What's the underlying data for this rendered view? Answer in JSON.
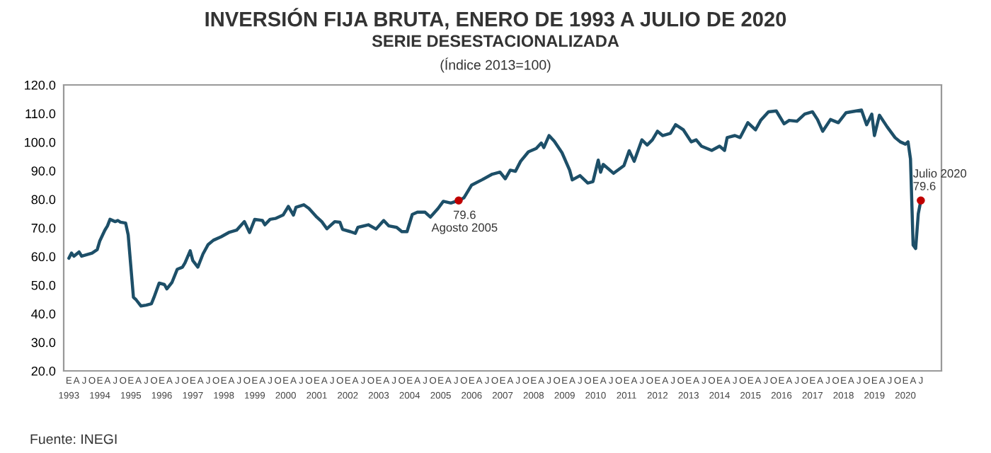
{
  "chart_data": {
    "type": "line",
    "title": "INVERSIÓN FIJA BRUTA, ENERO DE 1993 A JULIO DE 2020",
    "subtitle": "SERIE DESESTACIONALIZADA",
    "annotations": [
      "(Índice 2013=100)",
      "Fuente: INEGI",
      {
        "text": "79.6\nAgosto 2005",
        "x": "2005-08",
        "y": 79.6
      },
      {
        "text": "Julio 2020\n79.6",
        "x": "2020-07",
        "y": 79.6
      }
    ],
    "series": [
      {
        "color": "#1d4f68",
        "x": [
          "1993-01",
          "1993-02",
          "1993-03",
          "1993-05",
          "1993-06",
          "1993-10",
          "1993-12",
          "1994-01",
          "1994-03",
          "1994-04",
          "1994-05",
          "1994-07",
          "1994-08",
          "1994-09",
          "1994-11",
          "1994-12",
          "1995-02",
          "1995-03",
          "1995-05",
          "1995-07",
          "1995-09",
          "1995-10",
          "1995-12",
          "1996-02",
          "1996-03",
          "1996-05",
          "1996-07",
          "1996-09",
          "1996-10",
          "1996-12",
          "1997-01",
          "1997-03",
          "1997-05",
          "1997-07",
          "1997-09",
          "1997-12",
          "1998-03",
          "1998-06",
          "1998-09",
          "1998-11",
          "1999-01",
          "1999-04",
          "1999-05",
          "1999-07",
          "1999-09",
          "1999-12",
          "2000-02",
          "2000-04",
          "2000-05",
          "2000-08",
          "2000-10",
          "2001-01",
          "2001-03",
          "2001-05",
          "2001-08",
          "2001-10",
          "2001-11",
          "2002-02",
          "2002-04",
          "2002-05",
          "2002-09",
          "2002-12",
          "2003-03",
          "2003-05",
          "2003-08",
          "2003-10",
          "2003-12",
          "2004-02",
          "2004-04",
          "2004-07",
          "2004-09",
          "2004-12",
          "2005-02",
          "2005-05",
          "2005-08",
          "2005-10",
          "2006-01",
          "2006-05",
          "2006-09",
          "2006-12",
          "2007-02",
          "2007-04",
          "2007-06",
          "2007-08",
          "2007-11",
          "2008-02",
          "2008-04",
          "2008-05",
          "2008-07",
          "2008-09",
          "2008-12",
          "2009-03",
          "2009-04",
          "2009-07",
          "2009-10",
          "2009-12",
          "2010-02",
          "2010-03",
          "2010-04",
          "2010-08",
          "2010-12",
          "2011-02",
          "2011-04",
          "2011-07",
          "2011-09",
          "2011-11",
          "2012-01",
          "2012-03",
          "2012-06",
          "2012-08",
          "2012-11",
          "2013-02",
          "2013-04",
          "2013-06",
          "2013-10",
          "2014-01",
          "2014-03",
          "2014-04",
          "2014-07",
          "2014-09",
          "2014-12",
          "2015-03",
          "2015-05",
          "2015-08",
          "2015-11",
          "2016-02",
          "2016-04",
          "2016-07",
          "2016-10",
          "2017-01",
          "2017-03",
          "2017-05",
          "2017-08",
          "2017-11",
          "2018-02",
          "2018-04",
          "2018-08",
          "2018-10",
          "2018-12",
          "2019-01",
          "2019-03",
          "2019-06",
          "2019-09",
          "2019-11",
          "2020-01",
          "2020-02",
          "2020-03",
          "2020-04",
          "2020-05",
          "2020-06",
          "2020-07"
        ],
        "values": [
          59.4,
          61.2,
          60.1,
          61.6,
          60.1,
          61.2,
          62.4,
          65.5,
          69.2,
          70.7,
          73.0,
          72.2,
          72.6,
          72.0,
          71.7,
          67.6,
          45.7,
          45.0,
          42.7,
          43.0,
          43.5,
          45.7,
          50.7,
          50.2,
          48.7,
          51.0,
          55.5,
          56.3,
          57.8,
          62.0,
          58.6,
          56.3,
          60.9,
          64.2,
          65.7,
          66.9,
          68.4,
          69.2,
          72.2,
          68.4,
          73.0,
          72.6,
          71.1,
          73.0,
          73.3,
          74.5,
          77.5,
          74.5,
          77.2,
          78.1,
          76.8,
          73.8,
          72.2,
          69.7,
          72.2,
          72.0,
          69.5,
          68.7,
          68.1,
          70.2,
          71.1,
          69.6,
          72.6,
          70.7,
          70.2,
          68.7,
          68.7,
          74.7,
          75.5,
          75.5,
          73.8,
          76.8,
          79.3,
          78.7,
          79.6,
          80.5,
          85.0,
          86.8,
          88.8,
          89.5,
          87.2,
          90.2,
          89.8,
          93.3,
          96.6,
          97.8,
          99.7,
          98.1,
          102.3,
          100.3,
          96.3,
          90.2,
          86.8,
          88.3,
          85.7,
          86.2,
          93.7,
          89.5,
          92.2,
          89.1,
          91.8,
          97.0,
          93.3,
          100.8,
          99.0,
          100.8,
          103.8,
          102.3,
          103.1,
          106.1,
          104.3,
          100.1,
          100.8,
          98.6,
          97.1,
          98.6,
          97.1,
          101.6,
          102.3,
          101.6,
          106.8,
          104.3,
          107.6,
          110.6,
          110.9,
          106.4,
          107.6,
          107.3,
          109.8,
          110.6,
          107.9,
          103.8,
          107.9,
          106.8,
          110.3,
          110.6,
          111.2,
          106.1,
          109.8,
          102.3,
          109.4,
          105.3,
          101.6,
          100.1,
          99.3,
          100.1,
          94.1,
          64.0,
          62.8,
          75.0,
          79.6
        ]
      },
      {
        "type": "scatter",
        "color": "#c00000",
        "x": [
          "2005-08",
          "2020-07"
        ],
        "values": [
          79.6,
          79.6
        ]
      }
    ],
    "xlim": [
      "1992-11",
      "2021-03"
    ],
    "ylim": [
      20,
      120
    ],
    "yticks": [
      {
        "value": 20,
        "label": "20.0"
      },
      {
        "value": 30,
        "label": "30.0"
      },
      {
        "value": 40,
        "label": "40.0"
      },
      {
        "value": 50,
        "label": "50.0"
      },
      {
        "value": 60,
        "label": "60.0"
      },
      {
        "value": 70,
        "label": "70.0"
      },
      {
        "value": 80,
        "label": "80.0"
      },
      {
        "value": 90,
        "label": "90.0"
      },
      {
        "value": 100,
        "label": "100.0"
      },
      {
        "value": 110,
        "label": "110.0"
      },
      {
        "value": 120,
        "label": "120.0"
      }
    ],
    "xticks": [
      {
        "value": "1993-01",
        "label": "E\n1993"
      },
      {
        "value": "1993-04",
        "label": "A"
      },
      {
        "value": "1993-07",
        "label": "J"
      },
      {
        "value": "1993-10",
        "label": "O"
      },
      {
        "value": "1994-01",
        "label": "E\n1994"
      },
      {
        "value": "1994-04",
        "label": "A"
      },
      {
        "value": "1994-07",
        "label": "J"
      },
      {
        "value": "1994-10",
        "label": "O"
      },
      {
        "value": "1995-01",
        "label": "E\n1995"
      },
      {
        "value": "1995-04",
        "label": "A"
      },
      {
        "value": "1995-07",
        "label": "J"
      },
      {
        "value": "1995-10",
        "label": "O"
      },
      {
        "value": "1996-01",
        "label": "E\n1996"
      },
      {
        "value": "1996-04",
        "label": "A"
      },
      {
        "value": "1996-07",
        "label": "J"
      },
      {
        "value": "1996-10",
        "label": "O"
      },
      {
        "value": "1997-01",
        "label": "E\n1997"
      },
      {
        "value": "1997-04",
        "label": "A"
      },
      {
        "value": "1997-07",
        "label": "J"
      },
      {
        "value": "1997-10",
        "label": "O"
      },
      {
        "value": "1998-01",
        "label": "E\n1998"
      },
      {
        "value": "1998-04",
        "label": "A"
      },
      {
        "value": "1998-07",
        "label": "J"
      },
      {
        "value": "1998-10",
        "label": "O"
      },
      {
        "value": "1999-01",
        "label": "E\n1999"
      },
      {
        "value": "1999-04",
        "label": "A"
      },
      {
        "value": "1999-07",
        "label": "J"
      },
      {
        "value": "1999-10",
        "label": "O"
      },
      {
        "value": "2000-01",
        "label": "E\n2000"
      },
      {
        "value": "2000-04",
        "label": "A"
      },
      {
        "value": "2000-07",
        "label": "J"
      },
      {
        "value": "2000-10",
        "label": "O"
      },
      {
        "value": "2001-01",
        "label": "E\n2001"
      },
      {
        "value": "2001-04",
        "label": "A"
      },
      {
        "value": "2001-07",
        "label": "J"
      },
      {
        "value": "2001-10",
        "label": "O"
      },
      {
        "value": "2002-01",
        "label": "E\n2002"
      },
      {
        "value": "2002-04",
        "label": "A"
      },
      {
        "value": "2002-07",
        "label": "J"
      },
      {
        "value": "2002-10",
        "label": "O"
      },
      {
        "value": "2003-01",
        "label": "E\n2003"
      },
      {
        "value": "2003-04",
        "label": "A"
      },
      {
        "value": "2003-07",
        "label": "J"
      },
      {
        "value": "2003-10",
        "label": "O"
      },
      {
        "value": "2004-01",
        "label": "E\n2004"
      },
      {
        "value": "2004-04",
        "label": "A"
      },
      {
        "value": "2004-07",
        "label": "J"
      },
      {
        "value": "2004-10",
        "label": "O"
      },
      {
        "value": "2005-01",
        "label": "E\n2005"
      },
      {
        "value": "2005-04",
        "label": "A"
      },
      {
        "value": "2005-07",
        "label": "J"
      },
      {
        "value": "2005-10",
        "label": "O"
      },
      {
        "value": "2006-01",
        "label": "E\n2006"
      },
      {
        "value": "2006-04",
        "label": "A"
      },
      {
        "value": "2006-07",
        "label": "J"
      },
      {
        "value": "2006-10",
        "label": "O"
      },
      {
        "value": "2007-01",
        "label": "E\n2007"
      },
      {
        "value": "2007-04",
        "label": "A"
      },
      {
        "value": "2007-07",
        "label": "J"
      },
      {
        "value": "2007-10",
        "label": "O"
      },
      {
        "value": "2008-01",
        "label": "E\n2008"
      },
      {
        "value": "2008-04",
        "label": "A"
      },
      {
        "value": "2008-07",
        "label": "J"
      },
      {
        "value": "2008-10",
        "label": "O"
      },
      {
        "value": "2009-01",
        "label": "E\n2009"
      },
      {
        "value": "2009-04",
        "label": "A"
      },
      {
        "value": "2009-07",
        "label": "J"
      },
      {
        "value": "2009-10",
        "label": "O"
      },
      {
        "value": "2010-01",
        "label": "E\n2010"
      },
      {
        "value": "2010-04",
        "label": "A"
      },
      {
        "value": "2010-07",
        "label": "J"
      },
      {
        "value": "2010-10",
        "label": "O"
      },
      {
        "value": "2011-01",
        "label": "E\n2011"
      },
      {
        "value": "2011-04",
        "label": "A"
      },
      {
        "value": "2011-07",
        "label": "J"
      },
      {
        "value": "2011-10",
        "label": "O"
      },
      {
        "value": "2012-01",
        "label": "E\n2012"
      },
      {
        "value": "2012-04",
        "label": "A"
      },
      {
        "value": "2012-07",
        "label": "J"
      },
      {
        "value": "2012-10",
        "label": "O"
      },
      {
        "value": "2013-01",
        "label": "E\n2013"
      },
      {
        "value": "2013-04",
        "label": "A"
      },
      {
        "value": "2013-07",
        "label": "J"
      },
      {
        "value": "2013-10",
        "label": "O"
      },
      {
        "value": "2014-01",
        "label": "E\n2014"
      },
      {
        "value": "2014-04",
        "label": "A"
      },
      {
        "value": "2014-07",
        "label": "J"
      },
      {
        "value": "2014-10",
        "label": "O"
      },
      {
        "value": "2015-01",
        "label": "E\n2015"
      },
      {
        "value": "2015-04",
        "label": "A"
      },
      {
        "value": "2015-07",
        "label": "J"
      },
      {
        "value": "2015-10",
        "label": "O"
      },
      {
        "value": "2016-01",
        "label": "E\n2016"
      },
      {
        "value": "2016-04",
        "label": "A"
      },
      {
        "value": "2016-07",
        "label": "J"
      },
      {
        "value": "2016-10",
        "label": "O"
      },
      {
        "value": "2017-01",
        "label": "E\n2017"
      },
      {
        "value": "2017-04",
        "label": "A"
      },
      {
        "value": "2017-07",
        "label": "J"
      },
      {
        "value": "2017-10",
        "label": "O"
      },
      {
        "value": "2018-01",
        "label": "E\n2018"
      },
      {
        "value": "2018-04",
        "label": "A"
      },
      {
        "value": "2018-07",
        "label": "J"
      },
      {
        "value": "2018-10",
        "label": "O"
      },
      {
        "value": "2019-01",
        "label": "E\n2019"
      },
      {
        "value": "2019-04",
        "label": "A"
      },
      {
        "value": "2019-07",
        "label": "J"
      },
      {
        "value": "2019-10",
        "label": "O"
      },
      {
        "value": "2020-01",
        "label": "E\n2020"
      },
      {
        "value": "2020-04",
        "label": "A"
      },
      {
        "value": "2020-07",
        "label": "J"
      }
    ],
    "grid": false,
    "legend": false
  }
}
